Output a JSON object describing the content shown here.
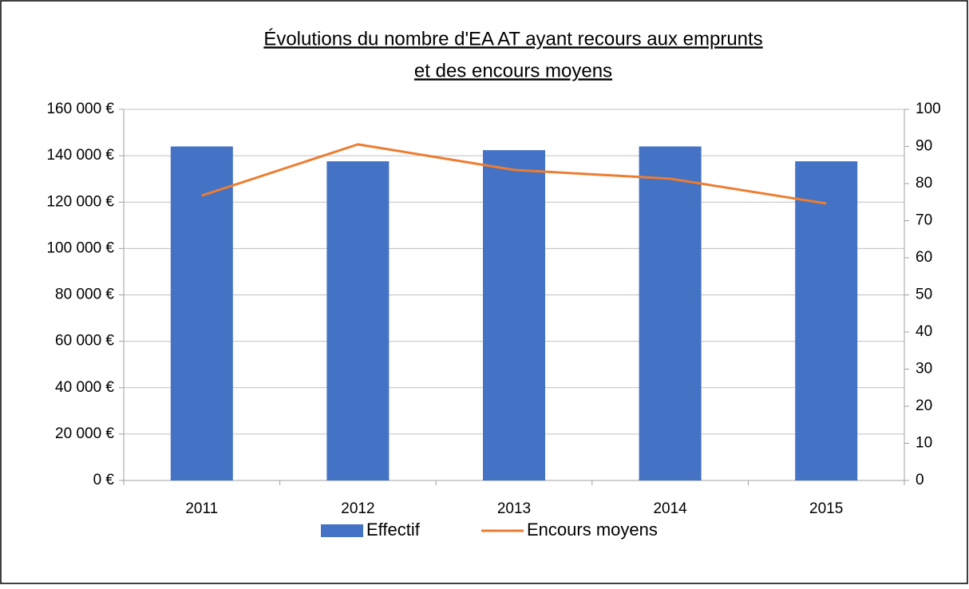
{
  "chart_data": {
    "type": "combo",
    "title": [
      "Évolutions du nombre d'EA AT ayant recours aux emprunts",
      "et des encours moyens"
    ],
    "categories": [
      "2011",
      "2012",
      "2013",
      "2014",
      "2015"
    ],
    "series": [
      {
        "name": "Effectif",
        "type": "bar",
        "axis": "y2",
        "color": "#4472c4",
        "values": [
          90,
          86,
          89,
          90,
          86
        ]
      },
      {
        "name": "Encours moyens",
        "type": "line",
        "axis": "y",
        "color": "#ed7d31",
        "values": [
          122800,
          144900,
          133900,
          130100,
          119400
        ]
      }
    ],
    "ylim": [
      0,
      160000
    ],
    "yticks": [
      {
        "value": 0,
        "label": "0 €"
      },
      {
        "value": 20000,
        "label": "20 000 €"
      },
      {
        "value": 40000,
        "label": "40 000 €"
      },
      {
        "value": 60000,
        "label": "60 000 €"
      },
      {
        "value": 80000,
        "label": "80 000 €"
      },
      {
        "value": 100000,
        "label": "100 000 €"
      },
      {
        "value": 120000,
        "label": "120 000 €"
      },
      {
        "value": 140000,
        "label": "140 000 €"
      },
      {
        "value": 160000,
        "label": "160 000 €"
      }
    ],
    "y2lim": [
      0,
      100
    ],
    "y2ticks": [
      0,
      10,
      20,
      30,
      40,
      50,
      60,
      70,
      80,
      90,
      100
    ],
    "grid": true,
    "legend": "bottom"
  }
}
